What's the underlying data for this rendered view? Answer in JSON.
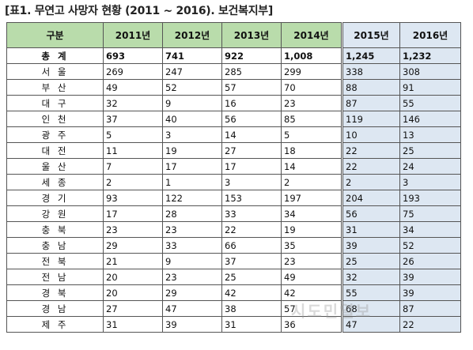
{
  "title": "[표1. 무연고 사망자 현황 (2011 ~ 2016). 보건복지부]",
  "watermark": "시도민일보",
  "table": {
    "header": [
      "구분",
      "2011년",
      "2012년",
      "2013년",
      "2014년",
      "2015년",
      "2016년"
    ],
    "rows": [
      [
        "총 계",
        "693",
        "741",
        "922",
        "1,008",
        "1,245",
        "1,232"
      ],
      [
        "서 울",
        "269",
        "247",
        "285",
        "299",
        "338",
        "308"
      ],
      [
        "부 산",
        "49",
        "52",
        "57",
        "70",
        "88",
        "91"
      ],
      [
        "대 구",
        "32",
        "9",
        "16",
        "23",
        "87",
        "55"
      ],
      [
        "인 천",
        "37",
        "40",
        "56",
        "85",
        "119",
        "146"
      ],
      [
        "광 주",
        "5",
        "3",
        "14",
        "5",
        "10",
        "13"
      ],
      [
        "대 전",
        "11",
        "19",
        "27",
        "18",
        "22",
        "25"
      ],
      [
        "울 산",
        "7",
        "17",
        "17",
        "14",
        "22",
        "24"
      ],
      [
        "세 종",
        "2",
        "1",
        "3",
        "2",
        "2",
        "3"
      ],
      [
        "경 기",
        "93",
        "122",
        "153",
        "197",
        "204",
        "193"
      ],
      [
        "강 원",
        "17",
        "28",
        "33",
        "34",
        "56",
        "75"
      ],
      [
        "충 북",
        "23",
        "23",
        "22",
        "19",
        "31",
        "34"
      ],
      [
        "충 남",
        "29",
        "33",
        "66",
        "35",
        "39",
        "52"
      ],
      [
        "전 북",
        "21",
        "9",
        "37",
        "23",
        "25",
        "26"
      ],
      [
        "전 남",
        "20",
        "23",
        "25",
        "49",
        "32",
        "39"
      ],
      [
        "경 북",
        "20",
        "29",
        "42",
        "42",
        "55",
        "39"
      ],
      [
        "경 남",
        "27",
        "47",
        "38",
        "57",
        "68",
        "87"
      ],
      [
        "제 주",
        "31",
        "39",
        "31",
        "36",
        "47",
        "22"
      ]
    ]
  }
}
